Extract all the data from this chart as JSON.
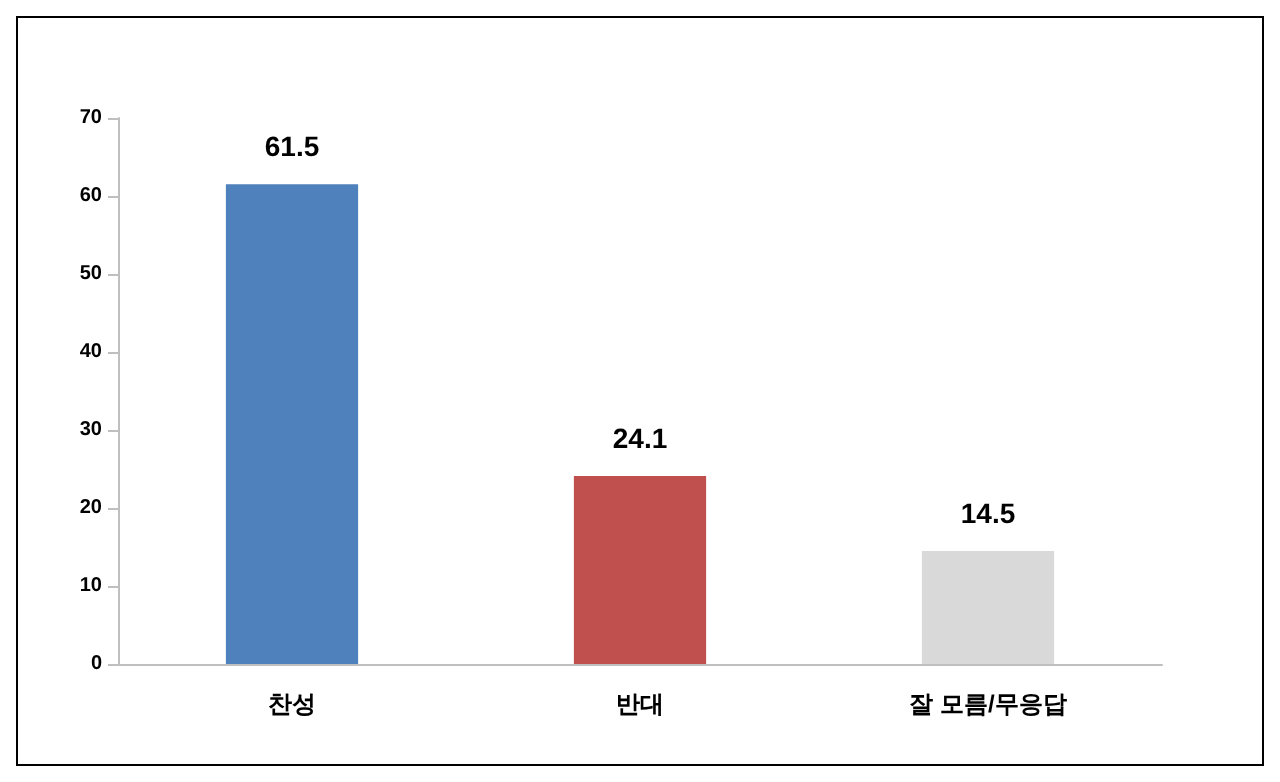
{
  "chart_data": {
    "type": "bar",
    "categories": [
      "찬성",
      "반대",
      "잘 모름/무응답"
    ],
    "values": [
      61.5,
      24.1,
      14.5
    ],
    "colors": [
      "#4f81bd",
      "#c0504d",
      "#d9d9d9"
    ],
    "ylim": [
      0,
      70
    ],
    "yticks": [
      0,
      10,
      20,
      30,
      40,
      50,
      60,
      70
    ],
    "grid": false,
    "data_labels": true
  }
}
